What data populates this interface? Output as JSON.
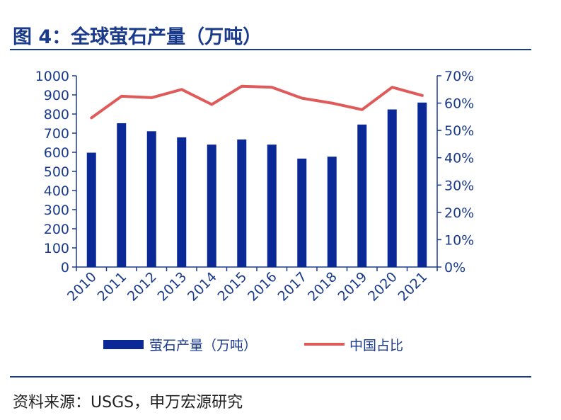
{
  "figure_title": "图 4：全球萤石产量（万吨）",
  "source": "资料来源：USGS，申万宏源研究",
  "colors": {
    "bar": "#0a2896",
    "line": "#e05a5a",
    "axis": "#1a3a8c"
  },
  "chart_data": {
    "type": "bar+line",
    "categories": [
      "2010",
      "2011",
      "2012",
      "2013",
      "2014",
      "2015",
      "2016",
      "2017",
      "2018",
      "2019",
      "2020",
      "2021"
    ],
    "series": [
      {
        "name": "萤石产量（万吨）",
        "type": "bar",
        "axis": "left",
        "values": [
          598,
          752,
          710,
          678,
          640,
          667,
          640,
          567,
          577,
          745,
          824,
          860
        ]
      },
      {
        "name": "中国占比",
        "type": "line",
        "axis": "right",
        "values": [
          54.6,
          62.5,
          62.0,
          65.0,
          59.5,
          66.2,
          65.8,
          61.8,
          60.0,
          57.6,
          65.8,
          62.8
        ]
      }
    ],
    "y_left": {
      "lim": [
        0,
        1000
      ],
      "ticks": [
        "0",
        "100",
        "200",
        "300",
        "400",
        "500",
        "600",
        "700",
        "800",
        "900",
        "1000"
      ]
    },
    "y_right": {
      "lim": [
        0,
        70
      ],
      "ticks": [
        "0%",
        "10%",
        "20%",
        "30%",
        "40%",
        "50%",
        "60%",
        "70%"
      ]
    },
    "grid": false,
    "legend": "bottom"
  }
}
